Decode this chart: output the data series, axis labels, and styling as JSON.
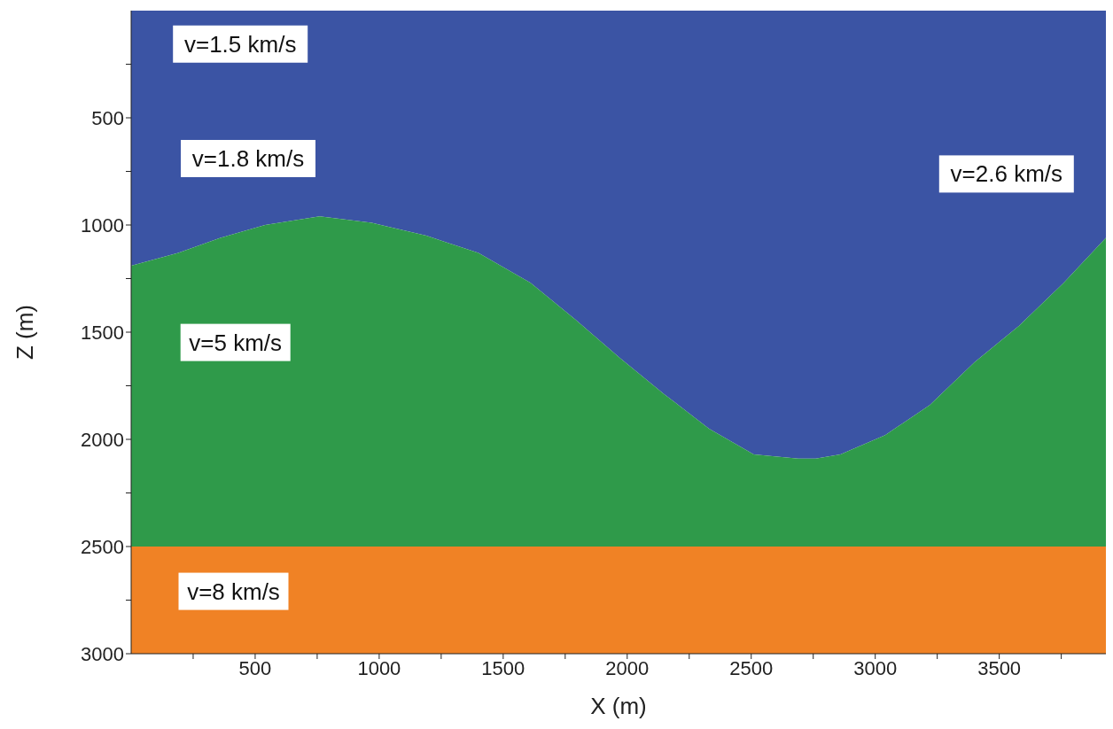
{
  "chart_data": {
    "type": "area",
    "stacked": true,
    "xlabel": "X (m)",
    "ylabel": "Z (m)",
    "x": [
      0,
      190,
      360,
      540,
      760,
      970,
      1190,
      1400,
      1610,
      1790,
      1970,
      2150,
      2330,
      2510,
      2690,
      2760,
      2860,
      3040,
      3220,
      3400,
      3580,
      3760,
      3930
    ],
    "series": [
      {
        "color": "#3b54a4",
        "values": [
          1190,
          1130,
          1060,
          1000,
          960,
          990,
          1050,
          1130,
          1270,
          1440,
          1620,
          1790,
          1950,
          2070,
          2090,
          2090,
          2070,
          1980,
          1840,
          1640,
          1470,
          1270,
          1060
        ]
      },
      {
        "color": "#2f9a4a",
        "values": [
          1310,
          1370,
          1440,
          1500,
          1540,
          1510,
          1450,
          1370,
          1230,
          1060,
          880,
          710,
          550,
          430,
          410,
          410,
          430,
          520,
          660,
          860,
          1030,
          1230,
          1440
        ]
      },
      {
        "color": "#f08225",
        "values": [
          500,
          500,
          500,
          500,
          500,
          500,
          500,
          500,
          500,
          500,
          500,
          500,
          500,
          500,
          500,
          500,
          500,
          500,
          500,
          500,
          500,
          500,
          500
        ]
      }
    ],
    "xlim": [
      0,
      3930
    ],
    "ylim": [
      3000,
      0
    ],
    "xticks": [
      {
        "value": 250,
        "label": null
      },
      500,
      {
        "value": 750,
        "label": null
      },
      1000,
      {
        "value": 1250,
        "label": null
      },
      1500,
      {
        "value": 1750,
        "label": null
      },
      2000,
      {
        "value": 2250,
        "label": null
      },
      2500,
      {
        "value": 2750,
        "label": null
      },
      3000,
      {
        "value": 3250,
        "label": null
      },
      3500,
      {
        "value": 3750,
        "label": null
      }
    ],
    "yticks": [
      {
        "value": 250,
        "label": null
      },
      500,
      {
        "value": 750,
        "label": null
      },
      1000,
      {
        "value": 1250,
        "label": null
      },
      1500,
      {
        "value": 1750,
        "label": null
      },
      2000,
      {
        "value": 2250,
        "label": null
      },
      2500,
      {
        "value": 2750,
        "label": null
      },
      3000
    ],
    "annotations": [
      "v=1.5 km/s",
      "v=1.8 km/s",
      "v=2.6 km/s",
      "v=5 km/s",
      "v=8 km/s"
    ]
  }
}
